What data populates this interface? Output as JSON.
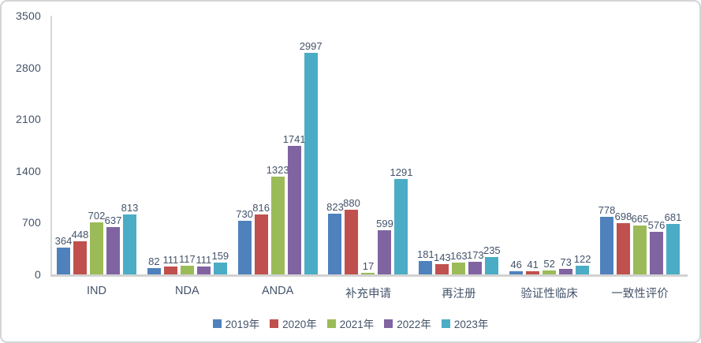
{
  "chart_data": {
    "type": "bar",
    "title": "",
    "categories": [
      "IND",
      "NDA",
      "ANDA",
      "补充申请",
      "再注册",
      "验证性临床",
      "一致性评价"
    ],
    "series": [
      {
        "name": "2019年",
        "color": "#4F81BD",
        "values": [
          364,
          82,
          730,
          823,
          181,
          46,
          778
        ]
      },
      {
        "name": "2020年",
        "color": "#C0504D",
        "values": [
          448,
          111,
          816,
          880,
          143,
          41,
          698
        ]
      },
      {
        "name": "2021年",
        "color": "#9BBB59",
        "values": [
          702,
          117,
          1323,
          17,
          163,
          52,
          665
        ]
      },
      {
        "name": "2022年",
        "color": "#8064A2",
        "values": [
          637,
          111,
          1741,
          599,
          173,
          73,
          576
        ]
      },
      {
        "name": "2023年",
        "color": "#4BACC6",
        "values": [
          813,
          159,
          2997,
          1291,
          235,
          122,
          681
        ]
      }
    ],
    "xlabel": "",
    "ylabel": "",
    "ylim": [
      0,
      3500
    ],
    "yticks": [
      0,
      700,
      1400,
      2100,
      2800,
      3500
    ],
    "grid": false,
    "data_labels": true,
    "legend_position": "bottom"
  },
  "styles": {
    "background": "#ffffff",
    "frame_border_color": "#d2d4d6",
    "axis_color": "#d6d6d6",
    "baseline_color": "#d2d2d2",
    "text_color": "#44536a"
  }
}
